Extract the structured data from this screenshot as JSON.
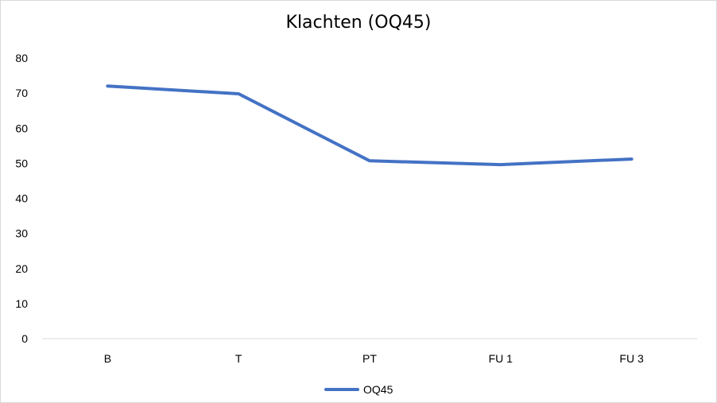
{
  "chart_data": {
    "type": "line",
    "title": "Klachten (OQ45)",
    "categories": [
      "B",
      "T",
      "PT",
      "FU 1",
      "FU 3"
    ],
    "series": [
      {
        "name": "OQ45",
        "values": [
          72,
          69.8,
          50.7,
          49.6,
          51.2
        ],
        "color": "#4472C4"
      }
    ],
    "ylim": [
      0,
      80
    ],
    "yticks": [
      0,
      10,
      20,
      30,
      40,
      50,
      60,
      70,
      80
    ],
    "xlabel": "",
    "ylabel": "",
    "grid": false,
    "legend": "bottom"
  }
}
